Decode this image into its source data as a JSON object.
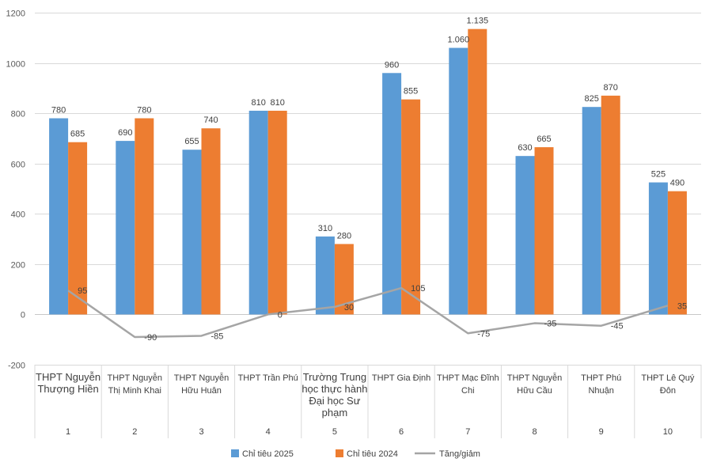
{
  "chart_data": {
    "type": "bar",
    "categories": [
      {
        "name": "THPT Nguyễn Thượng Hiền",
        "lines": [
          "THPT Nguyễn",
          "Thượng Hiền"
        ],
        "index": "1",
        "large": true
      },
      {
        "name": "THPT Nguyễn Thị Minh Khai",
        "lines": [
          "THPT Nguyễn",
          "Thị Minh Khai"
        ],
        "index": "2",
        "large": false
      },
      {
        "name": "THPT Nguyễn Hữu Huân",
        "lines": [
          "THPT Nguyễn",
          "Hữu Huân"
        ],
        "index": "3",
        "large": false
      },
      {
        "name": "THPT Trần Phú",
        "lines": [
          "THPT Trần Phú"
        ],
        "index": "4",
        "large": false
      },
      {
        "name": "Trường Trung học thực hành Đại học Sư phạm",
        "lines": [
          "Trường Trung",
          "học thực hành",
          "Đại học Sư",
          "phạm"
        ],
        "index": "5",
        "large": true
      },
      {
        "name": "THPT Gia Định",
        "lines": [
          "THPT Gia Định"
        ],
        "index": "6",
        "large": false
      },
      {
        "name": "THPT Mạc Đĩnh Chi",
        "lines": [
          "THPT Mạc Đĩnh",
          "Chi"
        ],
        "index": "7",
        "large": false
      },
      {
        "name": "THPT Nguyễn Hữu Cầu",
        "lines": [
          "THPT Nguyễn",
          "Hữu Cầu"
        ],
        "index": "8",
        "large": false
      },
      {
        "name": "THPT Phú Nhuận",
        "lines": [
          "THPT Phú",
          "Nhuận"
        ],
        "index": "9",
        "large": false
      },
      {
        "name": "THPT Lê Quý Đôn",
        "lines": [
          "THPT Lê Quý",
          "Đôn"
        ],
        "index": "10",
        "large": false
      }
    ],
    "series": [
      {
        "name": "Chỉ tiêu 2025",
        "kind": "bar",
        "color": "#5b9bd5",
        "values": [
          780,
          690,
          655,
          810,
          310,
          960,
          1060,
          630,
          825,
          525
        ],
        "labels": [
          "780",
          "690",
          "655",
          "810",
          "310",
          "960",
          "1.060",
          "630",
          "825",
          "525"
        ]
      },
      {
        "name": "Chỉ tiêu 2024",
        "kind": "bar",
        "color": "#ed7d31",
        "values": [
          685,
          780,
          740,
          810,
          280,
          855,
          1135,
          665,
          870,
          490
        ],
        "labels": [
          "685",
          "780",
          "740",
          "810",
          "280",
          "855",
          "1.135",
          "665",
          "870",
          "490"
        ]
      },
      {
        "name": "Tăng/giảm",
        "kind": "line",
        "color": "#a5a5a5",
        "values": [
          95,
          -90,
          -85,
          0,
          30,
          105,
          -75,
          -35,
          -45,
          35
        ],
        "labels": [
          "95",
          "-90",
          "-85",
          "0",
          "30",
          "105",
          "-75",
          "-35",
          "-45",
          "35"
        ]
      }
    ],
    "yticks": [
      {
        "value": 1200,
        "label": "1200"
      },
      {
        "value": 1000,
        "label": "1000"
      },
      {
        "value": 800,
        "label": "800"
      },
      {
        "value": 600,
        "label": "600"
      },
      {
        "value": 400,
        "label": "400"
      },
      {
        "value": 200,
        "label": "200"
      },
      {
        "value": 0,
        "label": "0"
      },
      {
        "value": -200,
        "label": "-200"
      }
    ],
    "ylim": [
      -200,
      1200
    ],
    "grid": true,
    "legend_position": "bottom"
  }
}
